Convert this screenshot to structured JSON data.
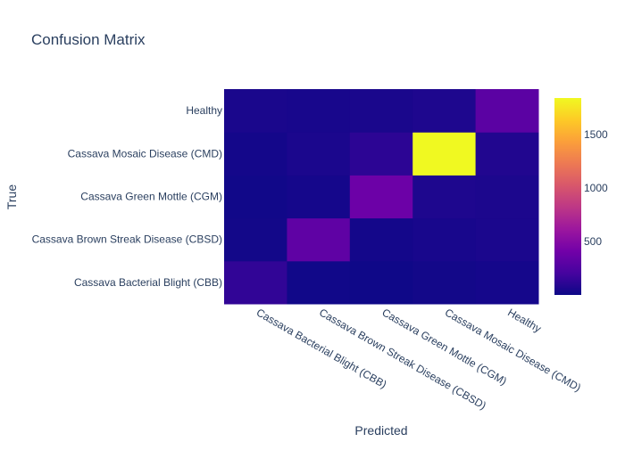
{
  "chart_data": {
    "type": "heatmap",
    "title": "Confusion Matrix",
    "xlabel": "Predicted",
    "ylabel": "True",
    "x_categories": [
      "Cassava Bacterial Blight (CBB)",
      "Cassava Brown Streak Disease (CBSD)",
      "Cassava Green Mottle (CGM)",
      "Cassava Mosaic Disease (CMD)",
      "Healthy"
    ],
    "y_categories": [
      "Cassava Bacterial Blight (CBB)",
      "Cassava Brown Streak Disease (CBSD)",
      "Cassava Green Mottle (CGM)",
      "Cassava Mosaic Disease (CMD)",
      "Healthy"
    ],
    "z": [
      [
        130,
        15,
        8,
        20,
        30
      ],
      [
        20,
        320,
        25,
        40,
        50
      ],
      [
        15,
        30,
        380,
        60,
        55
      ],
      [
        25,
        50,
        110,
        1840,
        70
      ],
      [
        45,
        40,
        45,
        60,
        300
      ]
    ],
    "zmin": 0,
    "zmax": 1840,
    "colorbar_ticks": [
      500,
      1000,
      1500
    ],
    "colorscale": [
      "#0d0887",
      "#46039f",
      "#7201a8",
      "#9c179e",
      "#bd3786",
      "#d8576b",
      "#ed7953",
      "#fb9f3a",
      "#fdca26",
      "#f0f921"
    ],
    "background": "#ffffff",
    "text_color": "#2a3f5f"
  }
}
